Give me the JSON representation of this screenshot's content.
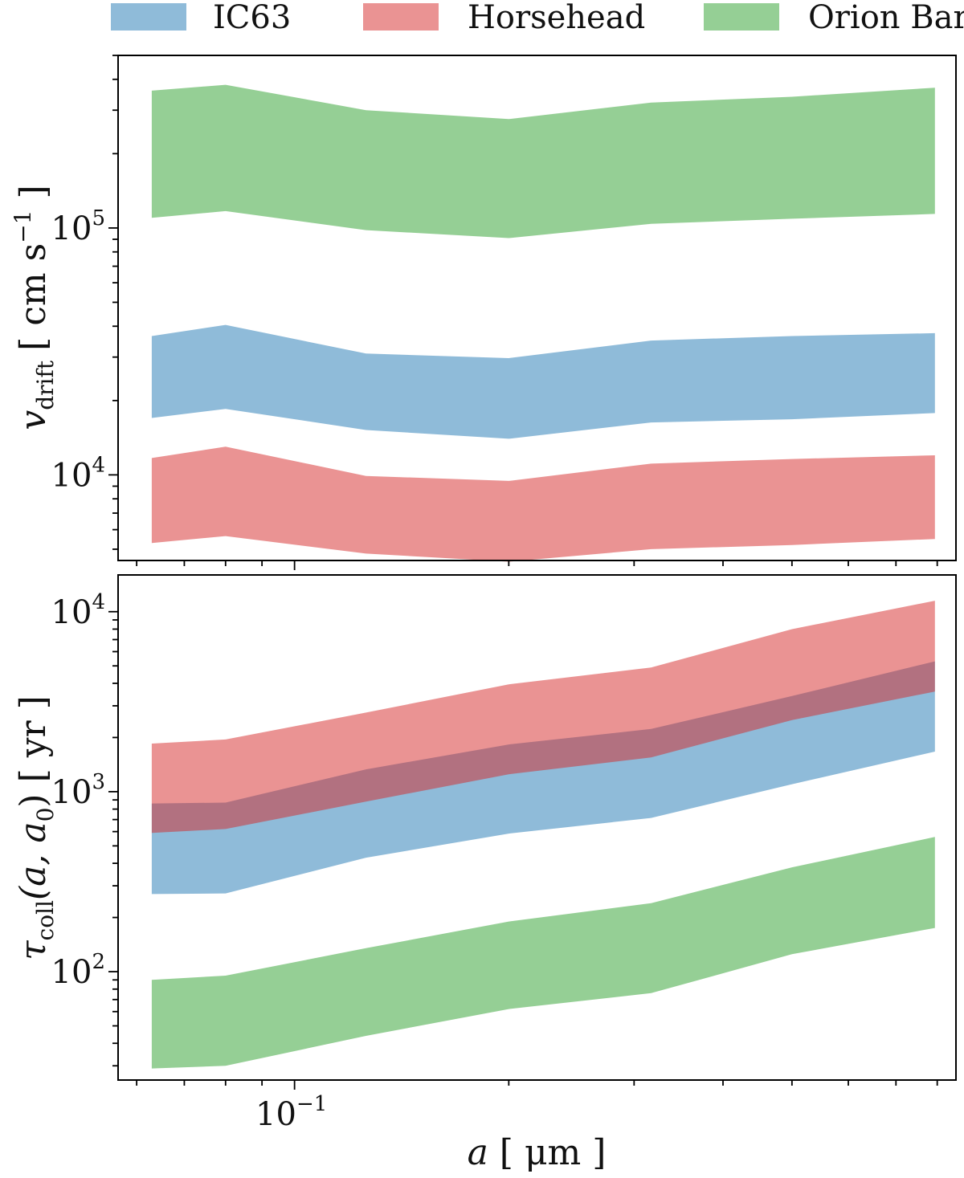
{
  "chart_data": [
    {
      "type": "area",
      "panel": "top",
      "xscale": "log",
      "yscale": "log",
      "xlim": [
        0.0565,
        0.85
      ],
      "ylim": [
        4500,
        500000
      ],
      "ylabel": "v_drift [cm s^-1]",
      "ylabel_parts": {
        "symbol": "v",
        "subscript": "drift",
        "unit_open": "[ cm s",
        "unit_exp": "−1",
        "unit_close": " ]"
      },
      "y_ticks": [
        {
          "value": 100000,
          "base": "10",
          "exp": "5"
        },
        {
          "value": 10000,
          "base": "10",
          "exp": "4"
        }
      ],
      "x": [
        0.063,
        0.08,
        0.126,
        0.2,
        0.317,
        0.5,
        0.794
      ],
      "series": [
        {
          "name": "IC63",
          "color": "#1f77b4",
          "lower": [
            17000,
            18500,
            15200,
            14000,
            16300,
            16800,
            17800
          ],
          "upper": [
            36500,
            40500,
            31000,
            29700,
            35000,
            36500,
            37500
          ]
        },
        {
          "name": "Horsehead",
          "color": "#d62728",
          "lower": [
            5300,
            5650,
            4800,
            4450,
            5000,
            5200,
            5500
          ],
          "upper": [
            11700,
            13000,
            9900,
            9450,
            11100,
            11600,
            12000
          ]
        },
        {
          "name": "Orion Bar",
          "color": "#2ca02c",
          "lower": [
            110000,
            117000,
            98000,
            91000,
            104000,
            109000,
            114000
          ],
          "upper": [
            360000,
            380000,
            300000,
            276000,
            322000,
            340000,
            370000
          ]
        }
      ]
    },
    {
      "type": "area",
      "panel": "bottom",
      "xscale": "log",
      "yscale": "log",
      "xlim": [
        0.0565,
        0.85
      ],
      "ylim": [
        25,
        16000
      ],
      "ylabel": "τ_coll(a, a_0) [yr]",
      "ylabel_parts": {
        "symbol": "τ",
        "subscript": "coll",
        "args_open": "(a, a",
        "args_sub": "0",
        "args_close": ") [ yr ]"
      },
      "xlabel": "a [μm]",
      "xlabel_parts": {
        "symbol": "a",
        "unit": " [ μm ]"
      },
      "x_ticks": [
        {
          "value": 0.1,
          "base": "10",
          "exp": "−1"
        }
      ],
      "y_ticks": [
        {
          "value": 10000,
          "base": "10",
          "exp": "4"
        },
        {
          "value": 1000,
          "base": "10",
          "exp": "3"
        },
        {
          "value": 100,
          "base": "10",
          "exp": "2"
        }
      ],
      "x": [
        0.063,
        0.08,
        0.126,
        0.2,
        0.317,
        0.5,
        0.794
      ],
      "series": [
        {
          "name": "IC63",
          "color": "#1f77b4",
          "lower": [
            270,
            272,
            430,
            585,
            715,
            1100,
            1670
          ],
          "upper": [
            860,
            870,
            1330,
            1830,
            2230,
            3400,
            5300
          ]
        },
        {
          "name": "Horsehead",
          "color": "#d62728",
          "lower": [
            590,
            620,
            880,
            1250,
            1550,
            2500,
            3600
          ],
          "upper": [
            1850,
            1950,
            2750,
            3950,
            4900,
            8000,
            11500
          ]
        },
        {
          "name": "Orion Bar",
          "color": "#2ca02c",
          "lower": [
            29,
            30,
            44,
            62,
            76,
            125,
            175
          ],
          "upper": [
            90,
            95,
            135,
            190,
            240,
            380,
            560
          ]
        }
      ]
    }
  ],
  "legend": {
    "placement": "top",
    "entries": [
      {
        "label": "IC63",
        "color": "#1f77b4"
      },
      {
        "label": "Horsehead",
        "color": "#d62728"
      },
      {
        "label": "Orion Bar",
        "color": "#2ca02c"
      }
    ]
  },
  "fill_opacity": 0.5
}
